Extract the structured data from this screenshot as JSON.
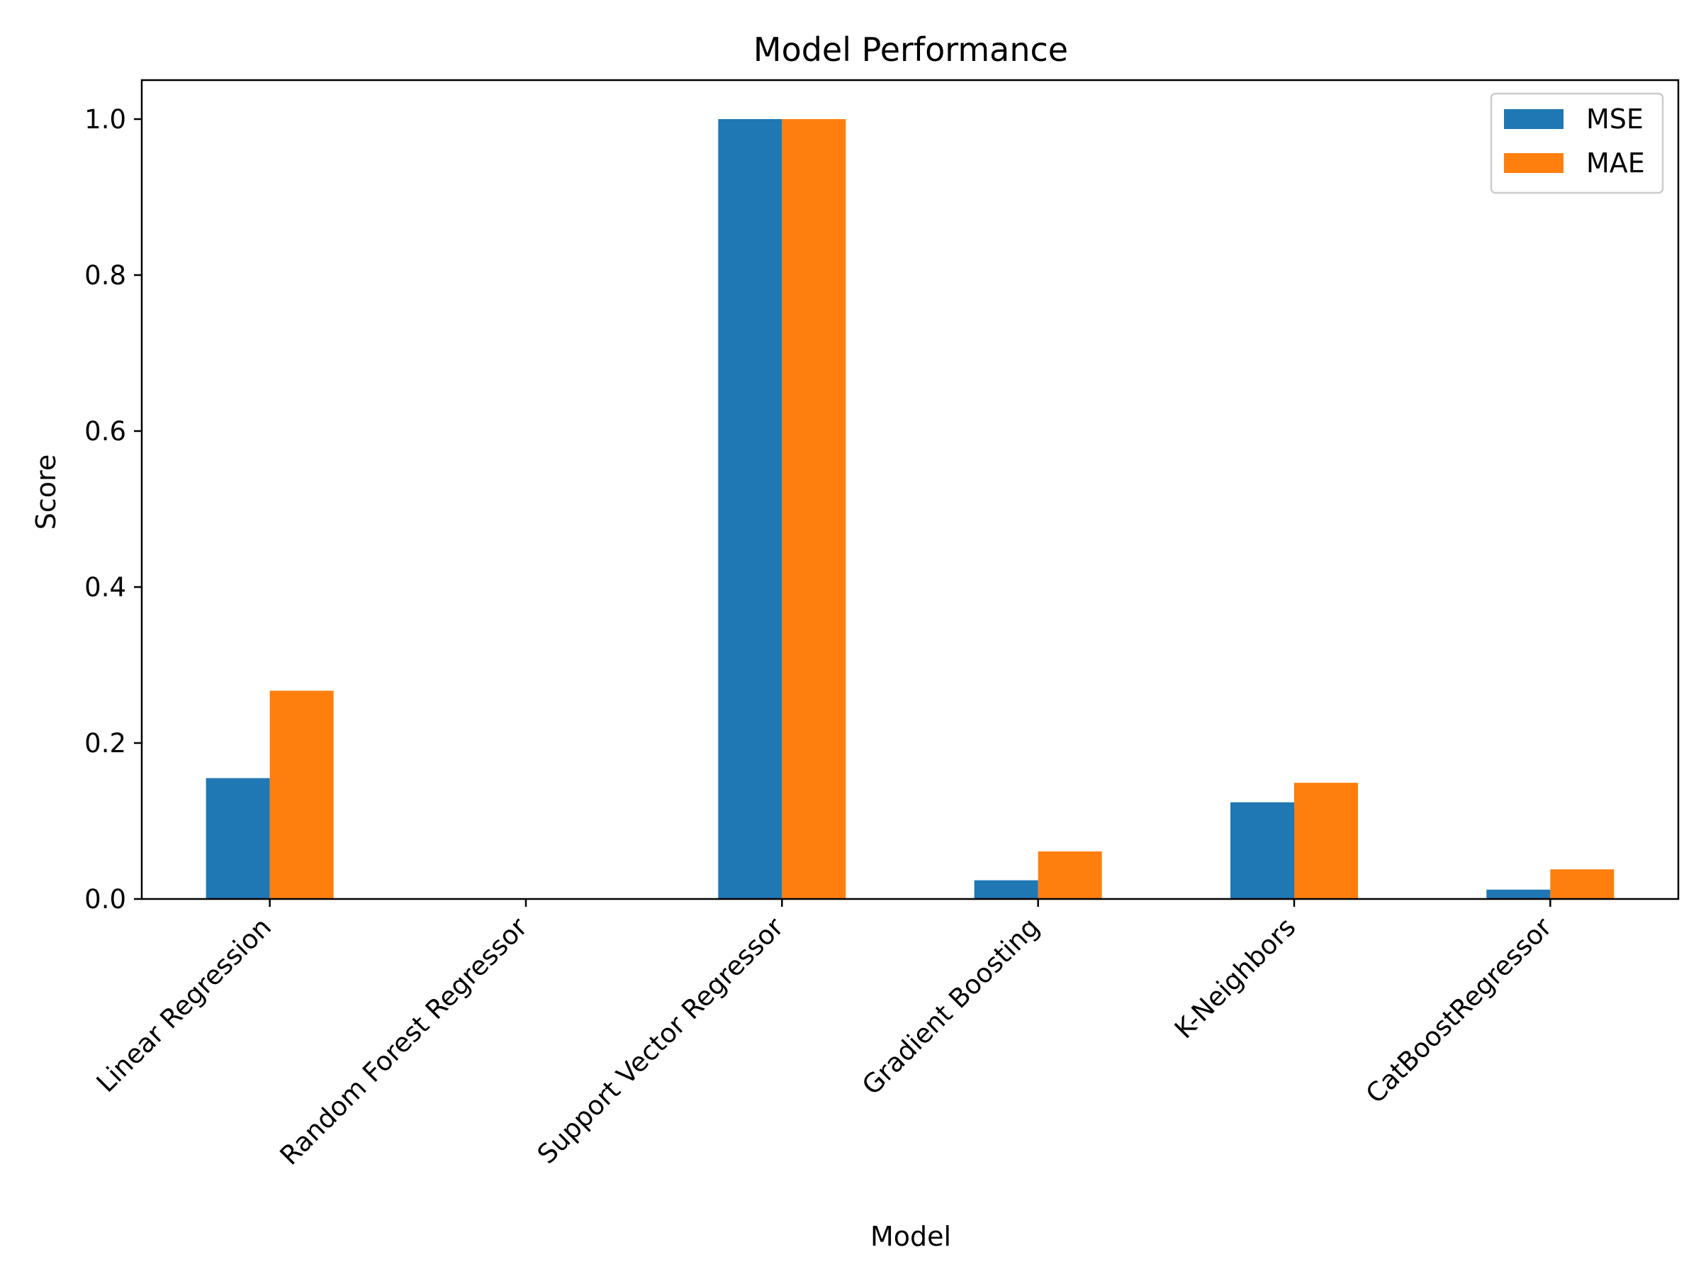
{
  "chart_data": {
    "type": "bar",
    "title": "Model Performance",
    "xlabel": "Model",
    "ylabel": "Score",
    "categories": [
      "Linear Regression",
      "Random Forest Regressor",
      "Support Vector Regressor",
      "Gradient Boosting",
      "K-Neighbors",
      "CatBoostRegressor"
    ],
    "series": [
      {
        "name": "MSE",
        "color": "#1f77b4",
        "values": [
          0.155,
          0.0,
          1.0,
          0.024,
          0.124,
          0.012
        ]
      },
      {
        "name": "MAE",
        "color": "#ff7f0e",
        "values": [
          0.267,
          0.0,
          1.0,
          0.061,
          0.149,
          0.038
        ]
      }
    ],
    "ylim": [
      0.0,
      1.05
    ],
    "yticks": [
      "0.0",
      "0.2",
      "0.4",
      "0.6",
      "0.8",
      "1.0"
    ],
    "grid": false,
    "legend_position": "top-right"
  }
}
